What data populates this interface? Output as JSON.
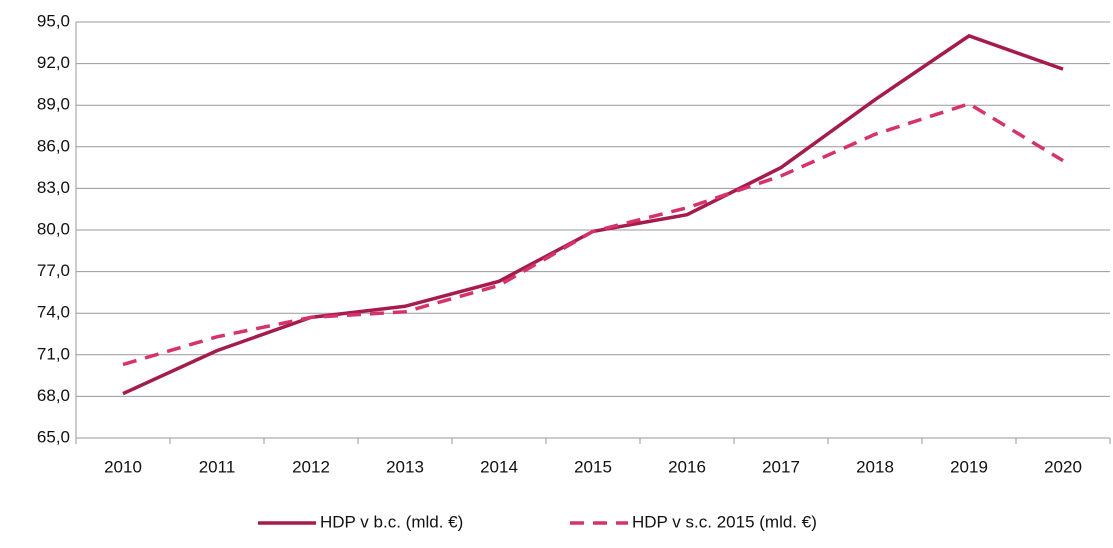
{
  "chart_data": {
    "type": "line",
    "categories": [
      "2010",
      "2011",
      "2012",
      "2013",
      "2014",
      "2015",
      "2016",
      "2017",
      "2018",
      "2019",
      "2020"
    ],
    "series": [
      {
        "name": "HDP v b.c. (mld. €)",
        "color": "#a51c4c",
        "dash": false,
        "values": [
          68.2,
          71.3,
          73.7,
          74.5,
          76.3,
          79.9,
          81.1,
          84.5,
          89.4,
          94.0,
          91.6
        ]
      },
      {
        "name": "HDP v s.c. 2015 (mld. €)",
        "color": "#d6336c",
        "dash": true,
        "values": [
          70.3,
          72.3,
          73.7,
          74.1,
          76.0,
          79.9,
          81.6,
          83.9,
          86.9,
          89.1,
          85.0
        ]
      }
    ],
    "ylim": [
      65,
      95
    ],
    "yticks": [
      {
        "value": 65,
        "label": "65,0"
      },
      {
        "value": 68,
        "label": "68,0"
      },
      {
        "value": 71,
        "label": "71,0"
      },
      {
        "value": 74,
        "label": "74,0"
      },
      {
        "value": 77,
        "label": "77,0"
      },
      {
        "value": 80,
        "label": "80,0"
      },
      {
        "value": 83,
        "label": "83,0"
      },
      {
        "value": 86,
        "label": "86,0"
      },
      {
        "value": 89,
        "label": "89,0"
      },
      {
        "value": 92,
        "label": "92,0"
      },
      {
        "value": 95,
        "label": "95,0"
      }
    ],
    "grid": true,
    "legend": "bottom"
  }
}
